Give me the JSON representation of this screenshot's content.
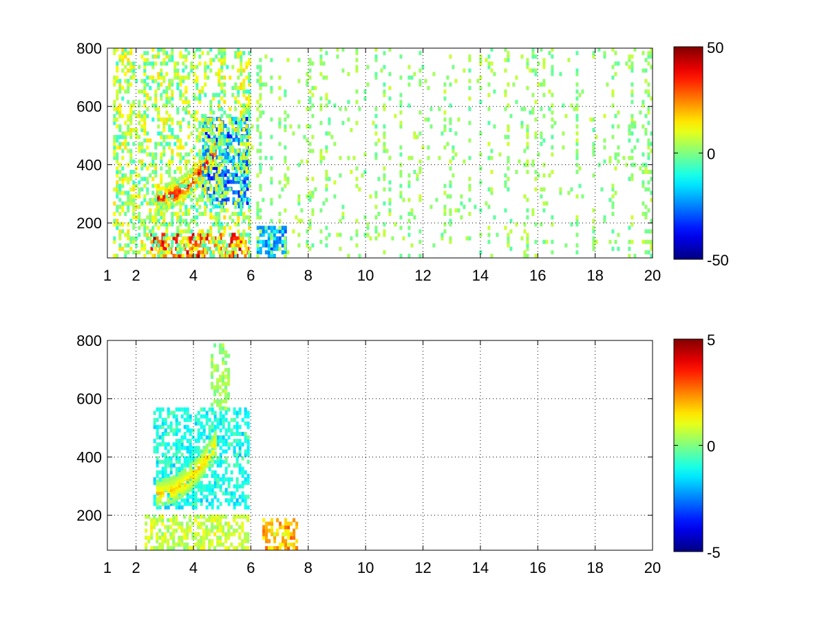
{
  "colormap": "jet",
  "chart_data": [
    {
      "type": "heatmap",
      "title": "",
      "xlabel": "",
      "ylabel": "",
      "xlim": [
        1,
        20
      ],
      "ylim": [
        80,
        800
      ],
      "grid": true,
      "grid_style": "dotted",
      "x_ticks": [
        1,
        2,
        4,
        6,
        8,
        10,
        12,
        14,
        16,
        18,
        20
      ],
      "x_tick_labels": [
        "1",
        "2",
        "4",
        "6",
        "8",
        "10",
        "12",
        "14",
        "16",
        "18",
        "20"
      ],
      "y_ticks": [
        200,
        400,
        600,
        800
      ],
      "y_tick_labels": [
        "200",
        "400",
        "600",
        "800"
      ],
      "colorbar": {
        "min": -50,
        "max": 50,
        "ticks": [
          -50,
          0,
          50
        ],
        "tick_labels": [
          "-50",
          "0",
          "50"
        ],
        "colormap": "jet",
        "location": "right"
      },
      "features": [
        {
          "x_range": [
            2.7,
            4.8
          ],
          "y_center": 280,
          "value": 42,
          "shape": "curve-rising"
        },
        {
          "x_range": [
            4.3,
            5.9
          ],
          "y_range": [
            250,
            560
          ],
          "value": -30,
          "shape": "band"
        },
        {
          "x_range": [
            2.5,
            5.9
          ],
          "y_range": [
            80,
            160
          ],
          "value": 35,
          "shape": "band"
        },
        {
          "x_range": [
            6.2,
            7.2
          ],
          "y_range": [
            80,
            180
          ],
          "value": -25,
          "shape": "blob"
        },
        {
          "x_range": [
            1.2,
            6.0
          ],
          "y_range": [
            80,
            800
          ],
          "value": 12,
          "shape": "dense-noise"
        },
        {
          "x_range": [
            6.0,
            20
          ],
          "y_range": [
            80,
            800
          ],
          "value": 3,
          "shape": "sparse-noise"
        }
      ]
    },
    {
      "type": "heatmap",
      "title": "",
      "xlabel": "",
      "ylabel": "",
      "xlim": [
        1,
        20
      ],
      "ylim": [
        80,
        800
      ],
      "grid": true,
      "grid_style": "dotted",
      "x_ticks": [
        1,
        2,
        4,
        6,
        8,
        10,
        12,
        14,
        16,
        18,
        20
      ],
      "x_tick_labels": [
        "1",
        "2",
        "4",
        "6",
        "8",
        "10",
        "12",
        "14",
        "16",
        "18",
        "20"
      ],
      "y_ticks": [
        200,
        400,
        600,
        800
      ],
      "y_tick_labels": [
        "200",
        "400",
        "600",
        "800"
      ],
      "colorbar": {
        "min": -5,
        "max": 5,
        "ticks": [
          -5,
          0,
          5
        ],
        "tick_labels": [
          "-5",
          "0",
          "5"
        ],
        "colormap": "jet",
        "location": "right"
      },
      "features": [
        {
          "x_range": [
            2.6,
            5.9
          ],
          "y_range": [
            220,
            560
          ],
          "value": -1.2,
          "shape": "band"
        },
        {
          "x_range": [
            2.7,
            4.8
          ],
          "y_center": 270,
          "value": 1.8,
          "shape": "curve-rising"
        },
        {
          "x_range": [
            2.3,
            5.9
          ],
          "y_range": [
            80,
            200
          ],
          "value": 0.8,
          "shape": "band"
        },
        {
          "x_range": [
            6.4,
            7.6
          ],
          "y_range": [
            80,
            180
          ],
          "value": 2.2,
          "shape": "blob"
        },
        {
          "x_range": [
            4.6,
            5.2
          ],
          "y_range": [
            560,
            780
          ],
          "value": 0.3,
          "shape": "band"
        }
      ]
    }
  ]
}
